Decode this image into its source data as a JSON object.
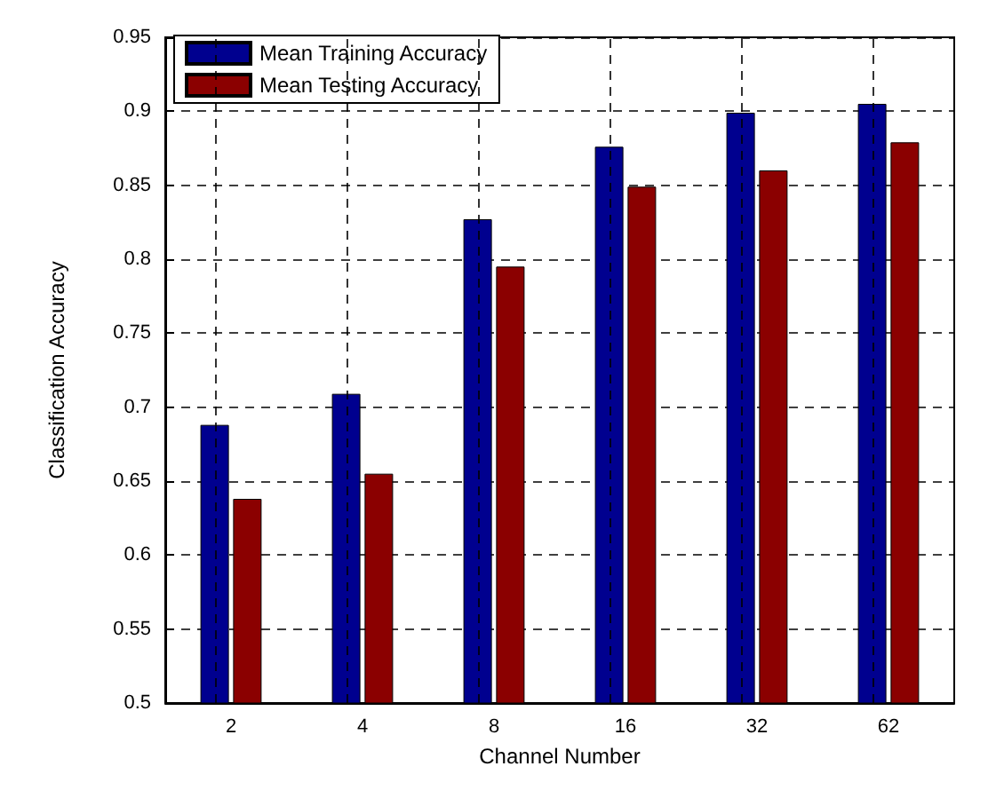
{
  "chart_data": {
    "type": "bar",
    "xlabel": "Channel Number",
    "ylabel": "Classification Accuracy",
    "categories": [
      "2",
      "4",
      "8",
      "16",
      "32",
      "62"
    ],
    "series": [
      {
        "name": "Mean Training Accuracy",
        "color": "#00008f",
        "values": [
          0.688,
          0.709,
          0.827,
          0.876,
          0.899,
          0.905
        ]
      },
      {
        "name": "Mean Testing Accuracy",
        "color": "#8b0000",
        "values": [
          0.638,
          0.655,
          0.795,
          0.849,
          0.86,
          0.879
        ]
      }
    ],
    "ylim": [
      0.5,
      0.95
    ],
    "yticks": [
      0.5,
      0.55,
      0.6,
      0.65,
      0.7,
      0.75,
      0.8,
      0.85,
      0.9,
      0.95
    ],
    "grid": true,
    "legend": "top left"
  }
}
